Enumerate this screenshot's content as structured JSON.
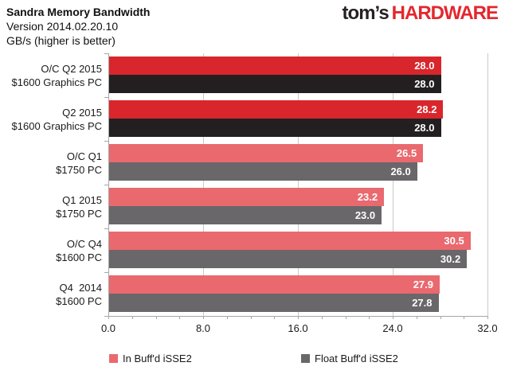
{
  "header": {
    "title": "Sandra Memory Bandwidth",
    "version": "Version 2014.02.20.10",
    "unit": "GB/s (higher is better)"
  },
  "logo": {
    "prefix": "tom’s",
    "suffix": "HARDWARE"
  },
  "chart_data": {
    "type": "bar",
    "orientation": "horizontal",
    "title": "Sandra Memory Bandwidth",
    "subtitle": "Version 2014.02.20.10",
    "value_unit": "GB/s (higher is better)",
    "categories": [
      {
        "line1": "O/C Q2 2015",
        "line2": "$1600 Graphics PC",
        "highlight": true
      },
      {
        "line1": "Q2 2015",
        "line2": "$1600 Graphics PC",
        "highlight": true
      },
      {
        "line1": "O/C Q1",
        "line2": "$1750 PC",
        "highlight": false
      },
      {
        "line1": "Q1 2015",
        "line2": "$1750 PC",
        "highlight": false
      },
      {
        "line1": "O/C Q4",
        "line2": "$1600 PC",
        "highlight": false
      },
      {
        "line1": "Q4  2014",
        "line2": "$1600 PC",
        "highlight": false
      }
    ],
    "series": [
      {
        "name": "In Buff'd iSSE2",
        "values": [
          28.0,
          28.2,
          26.5,
          23.2,
          30.5,
          27.9
        ],
        "labels": [
          "28.0",
          "28.2",
          "26.5",
          "23.2",
          "30.5",
          "27.9"
        ],
        "color": "#E9696F",
        "highlight_color": "#D8262C"
      },
      {
        "name": "Float Buff'd iSSE2",
        "values": [
          28.0,
          28.0,
          26.0,
          23.0,
          30.2,
          27.8
        ],
        "labels": [
          "28.0",
          "28.0",
          "26.0",
          "23.0",
          "30.2",
          "27.8"
        ],
        "color": "#696769",
        "highlight_color": "#231F20"
      }
    ],
    "xlim": [
      0,
      32
    ],
    "xticks": [
      0,
      8,
      16,
      24,
      32
    ],
    "xtick_labels": [
      "0.0",
      "8.0",
      "16.0",
      "24.0",
      "32.0"
    ],
    "minor_tick_step": 2,
    "grid": true,
    "legend_position": "bottom",
    "colors": {
      "grid": "#C9C9C9",
      "axis": "#A6A6A6",
      "logo_red": "#E3272E",
      "value_text": "#ffffff"
    }
  }
}
